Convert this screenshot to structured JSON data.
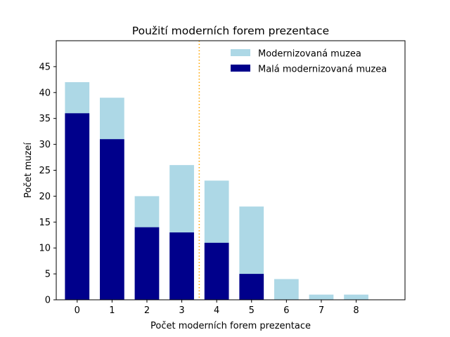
{
  "chart_data": {
    "type": "bar",
    "title": "Použití moderních forem prezentace",
    "xlabel": "Počet moderních forem prezentace",
    "ylabel": "Počet muzeí",
    "categories": [
      "0",
      "1",
      "2",
      "3",
      "4",
      "5",
      "6",
      "7",
      "8"
    ],
    "series": [
      {
        "name": "Modernizovaná muzea",
        "values": [
          42,
          39,
          20,
          26,
          23,
          18,
          4,
          1,
          1
        ],
        "color": "#add8e6"
      },
      {
        "name": "Malá modernizovaná muzea",
        "values": [
          36,
          31,
          14,
          13,
          11,
          5,
          0,
          0,
          0
        ],
        "color": "#00008b"
      }
    ],
    "ylim": [
      0,
      50
    ],
    "xlim": [
      -0.6,
      9.4
    ],
    "yticks": [
      0,
      5,
      10,
      15,
      20,
      25,
      30,
      35,
      40,
      45
    ],
    "vline": {
      "x": 3.5,
      "color": "#ffa500",
      "style": "dotted"
    },
    "grid": false,
    "legend_position": "top-right"
  }
}
